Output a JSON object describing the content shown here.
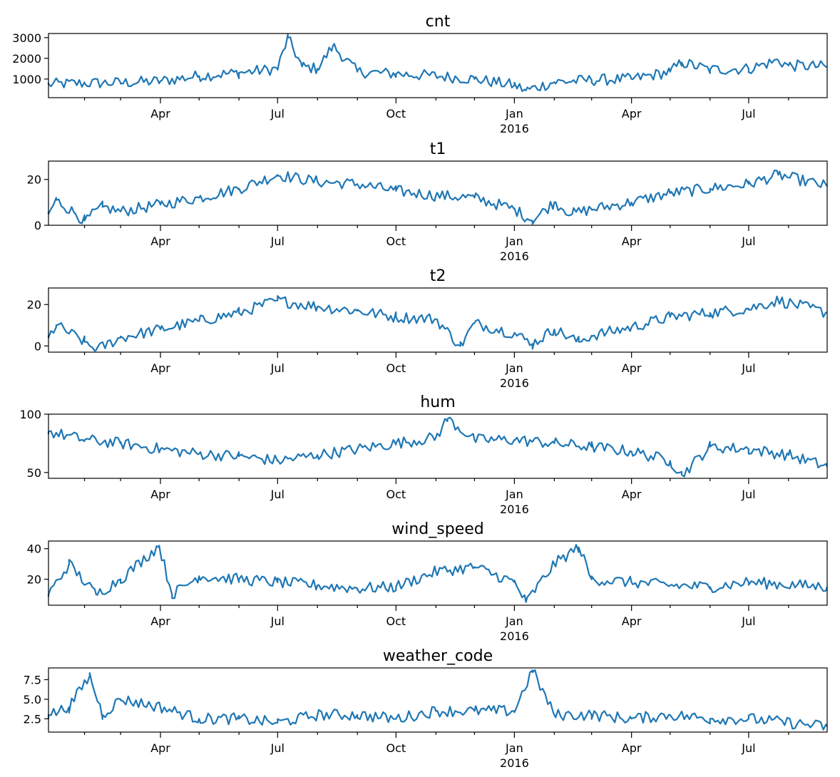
{
  "chart_data": [
    {
      "type": "line",
      "title": "cnt",
      "ylim": [
        100,
        3200
      ],
      "yticks": [
        1000,
        2000,
        3000
      ],
      "ytick_labels": [
        "1000",
        "2000",
        "3000"
      ],
      "color": "#1f77b4",
      "x": [
        "2015-01-04",
        "2015-02-01",
        "2015-03-01",
        "2015-04-01",
        "2015-05-01",
        "2015-06-01",
        "2015-07-01",
        "2015-07-09",
        "2015-07-20",
        "2015-08-01",
        "2015-08-13",
        "2015-09-01",
        "2015-10-01",
        "2015-11-01",
        "2015-12-01",
        "2016-01-01",
        "2016-01-10",
        "2016-02-01",
        "2016-03-01",
        "2016-04-01",
        "2016-05-01",
        "2016-05-10",
        "2016-06-01",
        "2016-07-01",
        "2016-07-24",
        "2016-08-01",
        "2016-08-31"
      ],
      "values": [
        750,
        800,
        820,
        900,
        1150,
        1300,
        1500,
        3000,
        1600,
        1500,
        2600,
        1350,
        1250,
        1150,
        1000,
        700,
        450,
        850,
        950,
        1000,
        1350,
        1800,
        1450,
        1500,
        1900,
        1650,
        1600
      ]
    },
    {
      "type": "line",
      "title": "t1",
      "ylim": [
        0,
        28
      ],
      "yticks": [
        0,
        20
      ],
      "ytick_labels": [
        "0",
        "20"
      ],
      "color": "#1f77b4",
      "x": [
        "2015-01-04",
        "2015-01-10",
        "2015-01-25",
        "2015-02-01",
        "2015-02-15",
        "2015-03-01",
        "2015-04-01",
        "2015-05-01",
        "2015-06-01",
        "2015-07-01",
        "2015-08-01",
        "2015-09-01",
        "2015-10-01",
        "2015-11-01",
        "2015-12-01",
        "2016-01-01",
        "2016-01-15",
        "2016-02-01",
        "2016-02-15",
        "2016-03-01",
        "2016-04-01",
        "2016-05-01",
        "2016-06-01",
        "2016-07-01",
        "2016-07-24",
        "2016-08-31"
      ],
      "values": [
        5,
        11,
        5,
        2,
        8,
        6,
        9,
        12,
        16,
        22,
        19,
        18,
        15,
        13,
        12,
        7,
        2,
        10,
        5,
        7,
        10,
        14,
        16,
        18,
        22,
        17
      ]
    },
    {
      "type": "line",
      "title": "t2",
      "ylim": [
        -3,
        28
      ],
      "yticks": [
        0,
        20
      ],
      "ytick_labels": [
        "0",
        "20"
      ],
      "color": "#1f77b4",
      "x": [
        "2015-01-04",
        "2015-01-10",
        "2015-02-01",
        "2015-02-10",
        "2015-03-01",
        "2015-04-01",
        "2015-05-01",
        "2015-06-01",
        "2015-07-01",
        "2015-08-01",
        "2015-09-01",
        "2015-10-01",
        "2015-11-01",
        "2015-11-20",
        "2015-12-01",
        "2016-01-01",
        "2016-01-15",
        "2016-02-01",
        "2016-02-20",
        "2016-03-01",
        "2016-04-01",
        "2016-05-01",
        "2016-06-01",
        "2016-07-01",
        "2016-07-24",
        "2016-08-31"
      ],
      "values": [
        4,
        10,
        2,
        -2,
        4,
        8,
        12,
        16,
        22,
        19,
        17,
        14,
        13,
        0,
        11,
        6,
        1,
        8,
        2,
        5,
        9,
        14,
        16,
        18,
        22,
        16
      ]
    },
    {
      "type": "line",
      "title": "hum",
      "ylim": [
        45,
        100
      ],
      "yticks": [
        50,
        100
      ],
      "ytick_labels": [
        "50",
        "100"
      ],
      "color": "#1f77b4",
      "x": [
        "2015-01-04",
        "2015-02-01",
        "2015-03-01",
        "2015-04-01",
        "2015-05-01",
        "2015-06-01",
        "2015-07-01",
        "2015-08-01",
        "2015-09-01",
        "2015-10-01",
        "2015-11-01",
        "2015-11-10",
        "2015-12-01",
        "2016-01-01",
        "2016-02-01",
        "2016-03-01",
        "2016-04-01",
        "2016-05-01",
        "2016-05-10",
        "2016-06-01",
        "2016-07-01",
        "2016-08-01",
        "2016-08-31"
      ],
      "values": [
        85,
        78,
        75,
        70,
        66,
        64,
        60,
        65,
        70,
        75,
        80,
        96,
        78,
        78,
        75,
        72,
        68,
        60,
        48,
        72,
        70,
        65,
        55
      ]
    },
    {
      "type": "line",
      "title": "wind_speed",
      "ylim": [
        3,
        45
      ],
      "yticks": [
        20,
        40
      ],
      "ytick_labels": [
        "20",
        "40"
      ],
      "color": "#1f77b4",
      "x": [
        "2015-01-04",
        "2015-01-20",
        "2015-02-10",
        "2015-03-01",
        "2015-03-31",
        "2015-04-10",
        "2015-05-01",
        "2015-06-01",
        "2015-07-01",
        "2015-08-01",
        "2015-09-01",
        "2015-10-01",
        "2015-11-01",
        "2015-12-01",
        "2016-01-01",
        "2016-01-10",
        "2016-02-01",
        "2016-02-20",
        "2016-03-01",
        "2016-04-01",
        "2016-05-01",
        "2016-06-01",
        "2016-07-01",
        "2016-08-31"
      ],
      "values": [
        10,
        30,
        10,
        20,
        42,
        10,
        22,
        20,
        18,
        16,
        14,
        15,
        25,
        28,
        18,
        5,
        30,
        41,
        20,
        18,
        16,
        15,
        18,
        15
      ]
    },
    {
      "type": "line",
      "title": "weather_code",
      "ylim": [
        0.8,
        9.0
      ],
      "yticks": [
        2.5,
        5.0,
        7.5
      ],
      "ytick_labels": [
        "2.5",
        "5.0",
        "7.5"
      ],
      "color": "#1f77b4",
      "x": [
        "2015-01-04",
        "2015-01-20",
        "2015-02-05",
        "2015-02-15",
        "2015-03-01",
        "2015-04-01",
        "2015-05-01",
        "2015-06-01",
        "2015-07-01",
        "2015-08-01",
        "2015-09-01",
        "2015-10-01",
        "2015-11-01",
        "2015-12-01",
        "2016-01-01",
        "2016-01-15",
        "2016-02-01",
        "2016-03-01",
        "2016-04-01",
        "2016-05-01",
        "2016-06-01",
        "2016-07-01",
        "2016-08-31"
      ],
      "values": [
        3,
        4,
        8,
        3,
        5,
        4,
        2.5,
        2.5,
        2,
        3,
        3,
        2.5,
        3.5,
        3.5,
        3.5,
        8.7,
        3,
        3,
        2.5,
        3,
        2.5,
        2.5,
        1.5
      ]
    }
  ],
  "x_axis": {
    "range": [
      "2015-01-04",
      "2016-08-31"
    ],
    "major_ticks": [
      {
        "date": "2015-04-01",
        "label": "Apr"
      },
      {
        "date": "2015-07-01",
        "label": "Jul"
      },
      {
        "date": "2015-10-01",
        "label": "Oct"
      },
      {
        "date": "2016-01-01",
        "label": "Jan"
      },
      {
        "date": "2016-04-01",
        "label": "Apr"
      },
      {
        "date": "2016-07-01",
        "label": "Jul"
      }
    ],
    "year_label": "2016",
    "year_label_date": "2016-01-01"
  }
}
